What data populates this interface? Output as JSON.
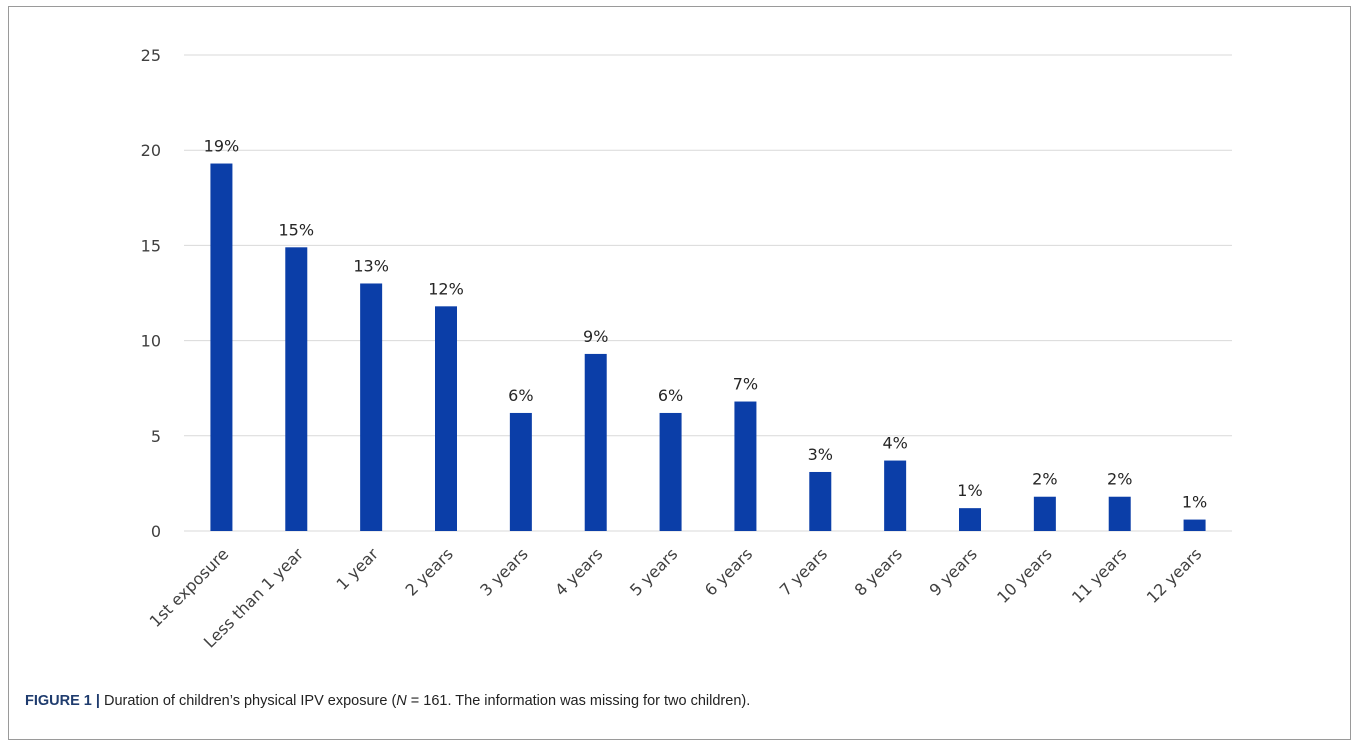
{
  "chart_data": {
    "type": "bar",
    "categories": [
      "1st exposure",
      "Less than 1 year",
      "1 year",
      "2 years",
      "3 years",
      "4 years",
      "5 years",
      "6 years",
      "7 years",
      "8 years",
      "9 years",
      "10 years",
      "11 years",
      "12 years"
    ],
    "values": [
      19.3,
      14.9,
      13.0,
      11.8,
      6.2,
      9.3,
      6.2,
      6.8,
      3.1,
      3.7,
      1.2,
      1.8,
      1.8,
      0.6
    ],
    "data_labels": [
      "19%",
      "15%",
      "13%",
      "12%",
      "6%",
      "9%",
      "6%",
      "7%",
      "3%",
      "4%",
      "1%",
      "2%",
      "2%",
      "1%"
    ],
    "ylim": [
      0,
      25
    ],
    "yticks": [
      0,
      5,
      10,
      15,
      20,
      25
    ],
    "grid": true,
    "bar_color": "#0b3ea8",
    "grid_color": "#d9d9d9"
  },
  "caption": {
    "prefix": "FIGURE 1 |",
    "text_before_n": " Duration of children’s physical IPV exposure (",
    "n_symbol": "N",
    "text_after_n": " = 161. The information was missing for two children)."
  }
}
